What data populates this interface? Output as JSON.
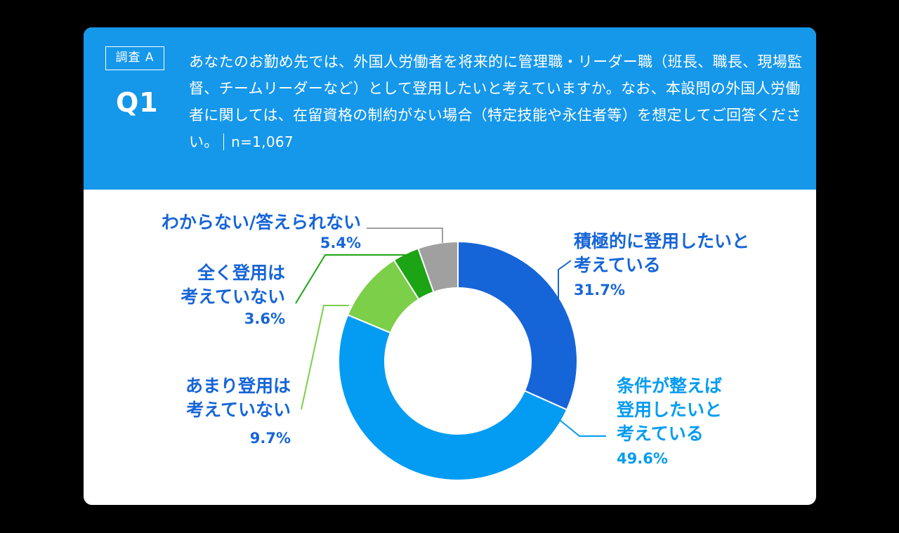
{
  "header": {
    "survey_tag": "調査 A",
    "question_number": "Q1",
    "question_text": "あなたのお勤め先では、外国人労働者を将来的に管理職・リーダー職（班長、職長、現場監督、チームリーダーなど）として登用したいと考えていますか。なお、本設問の外国人労働者に関しては、在留資格の制約がない場合（特定技能や永住者等）を想定してご回答ください。",
    "sample_size": "n=1,067"
  },
  "colors": {
    "header_bg": "#1597ea",
    "active_yes": "#1665d8",
    "conditional_yes": "#049cf2",
    "not_much": "#7ccf48",
    "not_at_all": "#1da414",
    "dont_know": "#a0a0a0"
  },
  "chart_data": {
    "type": "pie",
    "variant": "donut",
    "start": "12 o'clock, clockwise",
    "slices": [
      {
        "label": [
          "積極的に登用したいと",
          "考えている"
        ],
        "value": 31.7,
        "value_label": "31.7%",
        "color": "#1665d8",
        "label_color": "#1665d8"
      },
      {
        "label": [
          "条件が整えば",
          "登用したいと",
          "考えている"
        ],
        "value": 49.6,
        "value_label": "49.6%",
        "color": "#049cf2",
        "label_color": "#049cf2"
      },
      {
        "label": [
          "あまり登用は",
          "考えていない"
        ],
        "value": 9.7,
        "value_label": "9.7%",
        "color": "#7ccf48",
        "label_color": "#1665d8"
      },
      {
        "label": [
          "全く登用は",
          "考えていない"
        ],
        "value": 3.6,
        "value_label": "3.6%",
        "color": "#1da414",
        "label_color": "#1665d8"
      },
      {
        "label": [
          "わからない/答えられない"
        ],
        "value": 5.4,
        "value_label": "5.4%",
        "color": "#a0a0a0",
        "label_color": "#1665d8"
      }
    ]
  }
}
